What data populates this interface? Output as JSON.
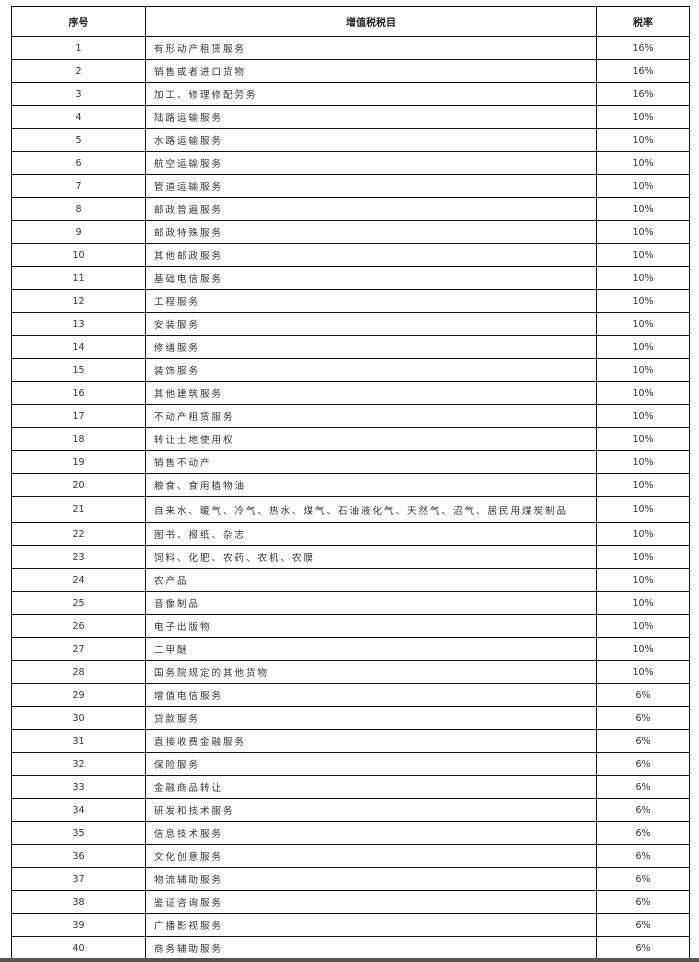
{
  "table": {
    "headers": {
      "index": "序号",
      "item": "增值税税目",
      "rate": "税率"
    },
    "rows": [
      {
        "no": "1",
        "item": "有形动产租赁服务",
        "rate": "16%"
      },
      {
        "no": "2",
        "item": "销售或者进口货物",
        "rate": "16%"
      },
      {
        "no": "3",
        "item": "加工、修理修配劳务",
        "rate": "16%"
      },
      {
        "no": "4",
        "item": "陆路运输服务",
        "rate": "10%"
      },
      {
        "no": "5",
        "item": "水路运输服务",
        "rate": "10%"
      },
      {
        "no": "6",
        "item": "航空运输服务",
        "rate": "10%"
      },
      {
        "no": "7",
        "item": "管道运输服务",
        "rate": "10%"
      },
      {
        "no": "8",
        "item": "邮政普遍服务",
        "rate": "10%"
      },
      {
        "no": "9",
        "item": "邮政特殊服务",
        "rate": "10%"
      },
      {
        "no": "10",
        "item": "其他邮政服务",
        "rate": "10%"
      },
      {
        "no": "11",
        "item": "基础电信服务",
        "rate": "10%"
      },
      {
        "no": "12",
        "item": "工程服务",
        "rate": "10%"
      },
      {
        "no": "13",
        "item": "安装服务",
        "rate": "10%"
      },
      {
        "no": "14",
        "item": "修缮服务",
        "rate": "10%"
      },
      {
        "no": "15",
        "item": "装饰服务",
        "rate": "10%"
      },
      {
        "no": "16",
        "item": "其他建筑服务",
        "rate": "10%"
      },
      {
        "no": "17",
        "item": "不动产租赁服务",
        "rate": "10%"
      },
      {
        "no": "18",
        "item": "转让土地使用权",
        "rate": "10%"
      },
      {
        "no": "19",
        "item": "销售不动产",
        "rate": "10%"
      },
      {
        "no": "20",
        "item": "粮食、食用植物油",
        "rate": "10%"
      },
      {
        "no": "21",
        "item": "自来水、暖气、冷气、热水、煤气、石油液化气、天然气、沼气、居民用煤炭制品",
        "rate": "10%"
      },
      {
        "no": "22",
        "item": "图书、报纸、杂志",
        "rate": "10%"
      },
      {
        "no": "23",
        "item": "饲料、化肥、农药、农机、农膜",
        "rate": "10%"
      },
      {
        "no": "24",
        "item": "农产品",
        "rate": "10%"
      },
      {
        "no": "25",
        "item": "音像制品",
        "rate": "10%"
      },
      {
        "no": "26",
        "item": "电子出版物",
        "rate": "10%"
      },
      {
        "no": "27",
        "item": "二甲醚",
        "rate": "10%"
      },
      {
        "no": "28",
        "item": "国务院规定的其他货物",
        "rate": "10%"
      },
      {
        "no": "29",
        "item": "增值电信服务",
        "rate": "6%"
      },
      {
        "no": "30",
        "item": "贷款服务",
        "rate": "6%"
      },
      {
        "no": "31",
        "item": "直接收费金融服务",
        "rate": "6%"
      },
      {
        "no": "32",
        "item": "保险服务",
        "rate": "6%"
      },
      {
        "no": "33",
        "item": "金融商品转让",
        "rate": "6%"
      },
      {
        "no": "34",
        "item": "研发和技术服务",
        "rate": "6%"
      },
      {
        "no": "35",
        "item": "信息技术服务",
        "rate": "6%"
      },
      {
        "no": "36",
        "item": "文化创意服务",
        "rate": "6%"
      },
      {
        "no": "37",
        "item": "物流辅助服务",
        "rate": "6%"
      },
      {
        "no": "38",
        "item": "鉴证咨询服务",
        "rate": "6%"
      },
      {
        "no": "39",
        "item": "广播影视服务",
        "rate": "6%"
      },
      {
        "no": "40",
        "item": "商务辅助服务",
        "rate": "6%"
      }
    ]
  }
}
